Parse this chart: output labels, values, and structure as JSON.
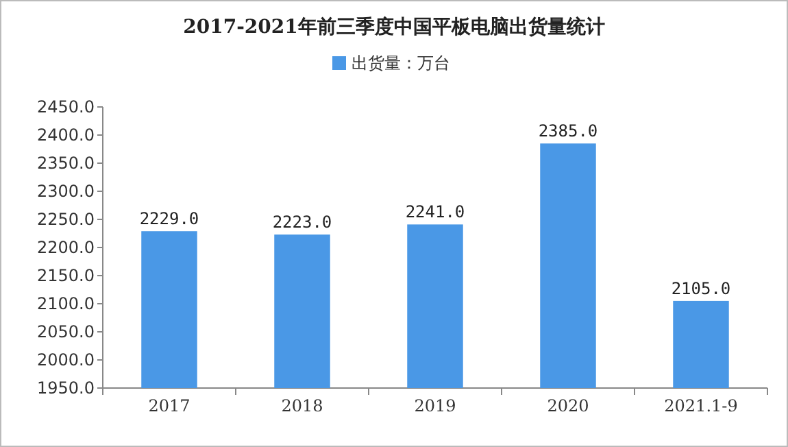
{
  "chart_data": {
    "type": "bar",
    "title": "2017-2021年前三季度中国平板电脑出货量统计",
    "categories": [
      "2017",
      "2018",
      "2019",
      "2020",
      "2021.1-9"
    ],
    "series": [
      {
        "name": "出货量：万台",
        "color": "#4a98e6",
        "values": [
          2229.0,
          2223.0,
          2241.0,
          2385.0,
          2105.0
        ],
        "value_labels": [
          "2229.0",
          "2223.0",
          "2241.0",
          "2385.0",
          "2105.0"
        ]
      }
    ],
    "ylim": [
      1950,
      2450
    ],
    "yticks": [
      {
        "value": 1950,
        "label": "1950.0"
      },
      {
        "value": 2000,
        "label": "2000.0"
      },
      {
        "value": 2050,
        "label": "2050.0"
      },
      {
        "value": 2100,
        "label": "2100.0"
      },
      {
        "value": 2150,
        "label": "2150.0"
      },
      {
        "value": 2200,
        "label": "2200.0"
      },
      {
        "value": 2250,
        "label": "2250.0"
      },
      {
        "value": 2300,
        "label": "2300.0"
      },
      {
        "value": 2350,
        "label": "2350.0"
      },
      {
        "value": 2400,
        "label": "2400.0"
      },
      {
        "value": 2450,
        "label": "2450.0"
      }
    ],
    "grid": false,
    "legend": "top"
  }
}
